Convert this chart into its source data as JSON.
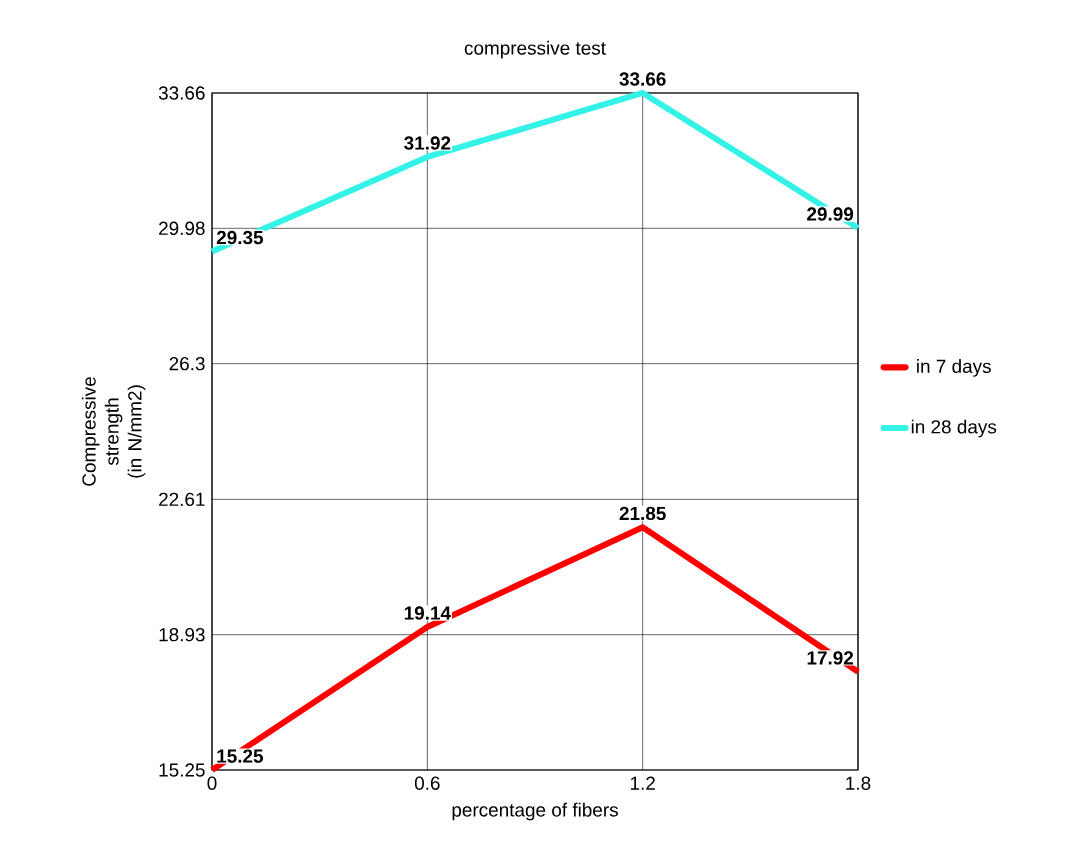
{
  "chart_data": {
    "type": "line",
    "title": "compressive test",
    "xlabel": "percentage of fibers",
    "ylabel": "Compressive strength (in N/mm2)",
    "x": [
      0,
      0.6,
      1.2,
      1.8
    ],
    "series": [
      {
        "name": "in 7 days",
        "color": "#ff0000",
        "values": [
          15.25,
          19.14,
          21.85,
          17.92
        ]
      },
      {
        "name": "in 28 days",
        "color": "#33f2e6",
        "values": [
          29.35,
          31.92,
          33.66,
          29.99
        ]
      }
    ],
    "xlim": [
      0,
      1.8
    ],
    "xticks": [
      0,
      0.6,
      1.2,
      1.8
    ],
    "ylim": [
      15.25,
      33.66
    ],
    "yticks": [
      15.25,
      18.93,
      22.61,
      26.3,
      29.98,
      33.66
    ],
    "grid": true,
    "legend": "right",
    "marker": "none",
    "line_style": "solid",
    "data_labels": true
  }
}
